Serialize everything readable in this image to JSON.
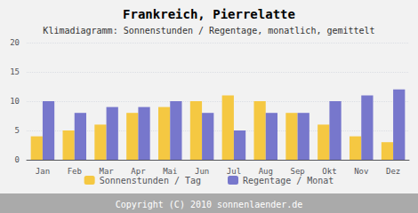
{
  "chart_data": {
    "type": "bar",
    "title": "Frankreich, Pierrelatte",
    "subtitle": "Klimadiagramm: Sonnenstunden / Regentage, monatlich, gemittelt",
    "categories": [
      "Jan",
      "Feb",
      "Mar",
      "Apr",
      "Mai",
      "Jun",
      "Jul",
      "Aug",
      "Sep",
      "Okt",
      "Nov",
      "Dez"
    ],
    "series": [
      {
        "name": "Sonnenstunden / Tag",
        "color": "#F5C842",
        "values": [
          4,
          5,
          6,
          8,
          9,
          10,
          11,
          10,
          8,
          6,
          4,
          3
        ]
      },
      {
        "name": "Regentage / Monat",
        "color": "#7777CC",
        "values": [
          10,
          8,
          9,
          9,
          10,
          8,
          5,
          8,
          8,
          10,
          11,
          12
        ]
      }
    ],
    "ylim": [
      0,
      20
    ],
    "yticks": [
      0,
      5,
      10,
      15,
      20
    ],
    "grid": true,
    "legend": "bottom",
    "annotations": [
      "Copyright (C) 2010 sonnenlaender.de"
    ]
  }
}
